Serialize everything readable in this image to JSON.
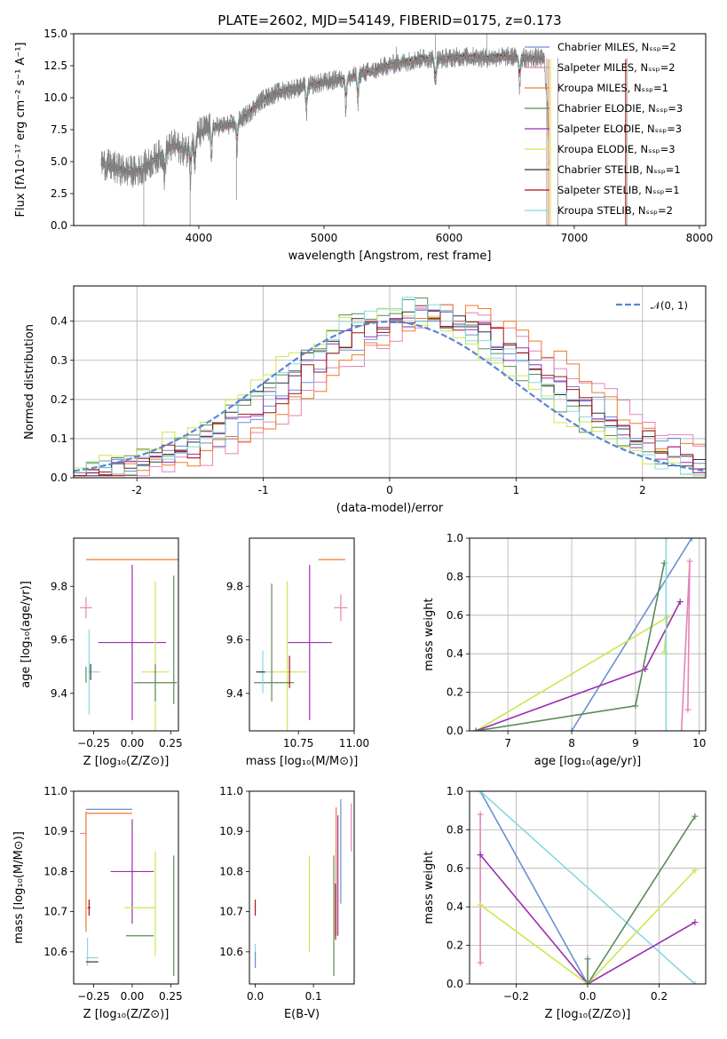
{
  "chart_data": [
    {
      "id": "spectrum",
      "type": "line",
      "title": "PLATE=2602, MJD=54149, FIBERID=0175, z=0.173",
      "xlabel": "wavelength [Angstrom, rest frame]",
      "ylabel": "Flux [fλ10⁻¹⁷ erg cm⁻² s⁻¹ A⁻¹]",
      "xlim": [
        3000,
        8050
      ],
      "ylim": [
        0,
        15
      ],
      "xticks": [
        4000,
        5000,
        6000,
        7000,
        8000
      ],
      "yticks": [
        0.0,
        2.5,
        5.0,
        7.5,
        10.0,
        12.5,
        15.0
      ],
      "legend_position": "right",
      "data_color": "#808080",
      "continuum": {
        "x": [
          3200,
          3300,
          3400,
          3500,
          3600,
          3700,
          3800,
          3900,
          4000,
          4100,
          4200,
          4300,
          4400,
          4500,
          4600,
          4700,
          4800,
          4900,
          5000,
          5100,
          5200,
          5300,
          5400,
          5500,
          5600,
          5700,
          5800,
          5900,
          6000,
          6100,
          6200,
          6300,
          6400,
          6500,
          6600,
          6700,
          6750
        ],
        "y": [
          5.0,
          4.6,
          4.3,
          4.2,
          4.8,
          5.6,
          6.3,
          5.8,
          7.2,
          7.7,
          7.8,
          8.0,
          8.8,
          9.8,
          10.3,
          10.6,
          10.8,
          11.0,
          11.2,
          11.4,
          11.5,
          11.9,
          12.1,
          12.5,
          12.7,
          12.9,
          13.1,
          13.0,
          13.1,
          13.2,
          13.2,
          13.1,
          13.2,
          13.2,
          13.1,
          13.1,
          13.0
        ]
      },
      "series": [
        {
          "name": "Chabrier MILES, N_SSP=2",
          "color": "#6a8fd4"
        },
        {
          "name": "Salpeter MILES, N_SSP=2",
          "color": "#e484b7"
        },
        {
          "name": "Kroupa MILES, N_SSP=1",
          "color": "#ee7a2c"
        },
        {
          "name": "Chabrier ELODIE, N_SSP=3",
          "color": "#5b8a5b"
        },
        {
          "name": "Salpeter ELODIE, N_SSP=3",
          "color": "#9b2fb0"
        },
        {
          "name": "Kroupa ELODIE, N_SSP=3",
          "color": "#cce651"
        },
        {
          "name": "Chabrier STELIB, N_SSP=1",
          "color": "#333333"
        },
        {
          "name": "Salpeter STELIB, N_SSP=1",
          "color": "#a31515"
        },
        {
          "name": "Kroupa STELIB, N_SSP=2",
          "color": "#88d8e0"
        }
      ]
    },
    {
      "id": "residuals",
      "type": "line",
      "xlabel": "(data-model)/error",
      "ylabel": "Normed distribution",
      "xlim": [
        -2.5,
        2.5
      ],
      "ylim": [
        0,
        0.49
      ],
      "xticks": [
        -2,
        -1,
        0,
        1,
        2
      ],
      "yticks": [
        0.0,
        0.1,
        0.2,
        0.3,
        0.4
      ],
      "grid": true,
      "legend_position": "top-right",
      "reference": {
        "name": "𝒩(0, 1)",
        "mu": 0,
        "sigma": 1,
        "color": "#5b84d4"
      },
      "series": [
        {
          "color": "#6a8fd4",
          "shift": 0.35,
          "width": 1.02
        },
        {
          "color": "#e484b7",
          "shift": 0.55,
          "width": 1.0
        },
        {
          "color": "#ee7a2c",
          "shift": 0.5,
          "width": 0.98
        },
        {
          "color": "#5b8a5b",
          "shift": 0.1,
          "width": 0.96
        },
        {
          "color": "#9b2fb0",
          "shift": 0.25,
          "width": 1.0
        },
        {
          "color": "#cce651",
          "shift": 0.0,
          "width": 1.0
        },
        {
          "color": "#333333",
          "shift": 0.2,
          "width": 1.0
        },
        {
          "color": "#a31515",
          "shift": 0.3,
          "width": 1.02
        },
        {
          "color": "#88d8e0",
          "shift": 0.15,
          "width": 0.97
        }
      ]
    },
    {
      "id": "z-age",
      "type": "scatter",
      "xlabel": "Z [log₁₀(Z/Z⊙)]",
      "ylabel": "age  [log₁₀(age/yr)]",
      "xlim": [
        -0.38,
        0.3
      ],
      "ylim": [
        9.26,
        9.98
      ],
      "xticks": [
        -0.25,
        0.0,
        0.25
      ],
      "xticklabels": [
        "−0.25",
        "0.00",
        "0.25"
      ],
      "yticks": [
        9.4,
        9.6,
        9.8
      ],
      "points": [
        {
          "x": 0.0,
          "y": 9.9,
          "xerr": 0.3,
          "yerr": 0.0,
          "color": "#ee7a2c"
        },
        {
          "x": -0.3,
          "y": 9.72,
          "xerr": 0.04,
          "yerr": 0.04,
          "color": "#e484b7"
        },
        {
          "x": 0.0,
          "y": 9.59,
          "xerr": 0.22,
          "yerr": 0.29,
          "color": "#9b2fb0"
        },
        {
          "x": 0.15,
          "y": 9.48,
          "xerr": 0.09,
          "yerr": 0.34,
          "color": "#cce651"
        },
        {
          "x": 0.15,
          "y": 9.44,
          "xerr": 0.14,
          "yerr": 0.07,
          "color": "#5b8a5b"
        },
        {
          "x": 0.27,
          "y": 9.6,
          "xerr": 0.0,
          "yerr": 0.24,
          "color": "#5b8a5b"
        },
        {
          "x": -0.28,
          "y": 9.48,
          "xerr": 0.0,
          "yerr": 0.16,
          "color": "#88d8e0"
        },
        {
          "x": -0.25,
          "y": 9.48,
          "xerr": 0.04,
          "yerr": 0.0,
          "color": "#88d8e0"
        },
        {
          "x": -0.3,
          "y": 9.47,
          "xerr": 0.0,
          "yerr": 0.03,
          "color": "#5b8a5b"
        },
        {
          "x": -0.27,
          "y": 9.48,
          "xerr": 0.0,
          "yerr": 0.03,
          "color": "#333333"
        }
      ]
    },
    {
      "id": "mass-age",
      "type": "scatter",
      "xlabel": "mass [log₁₀(M/M⊙)]",
      "xlim": [
        10.53,
        11.0
      ],
      "ylim": [
        9.26,
        9.98
      ],
      "xticks": [
        10.75,
        11.0
      ],
      "xticklabels": [
        "10.75",
        "11.00"
      ],
      "yticks": [
        9.4,
        9.6,
        9.8
      ],
      "points": [
        {
          "x": 10.9,
          "y": 9.9,
          "xerr": 0.06,
          "yerr": 0.0,
          "color": "#ee7a2c"
        },
        {
          "x": 10.95,
          "y": 9.9,
          "xerr": 0.0,
          "yerr": 0.0,
          "color": "#6a8fd4"
        },
        {
          "x": 10.94,
          "y": 9.72,
          "xerr": 0.03,
          "yerr": 0.05,
          "color": "#e484b7"
        },
        {
          "x": 10.8,
          "y": 9.59,
          "xerr": 0.1,
          "yerr": 0.29,
          "color": "#9b2fb0"
        },
        {
          "x": 10.7,
          "y": 9.48,
          "xerr": 0.09,
          "yerr": 0.34,
          "color": "#cce651"
        },
        {
          "x": 10.64,
          "y": 9.44,
          "xerr": 0.09,
          "yerr": 0.0,
          "color": "#5b8a5b"
        },
        {
          "x": 10.63,
          "y": 9.59,
          "xerr": 0.0,
          "yerr": 0.22,
          "color": "#5b8a5b"
        },
        {
          "x": 10.71,
          "y": 9.48,
          "xerr": 0.0,
          "yerr": 0.06,
          "color": "#a31515"
        },
        {
          "x": 10.59,
          "y": 9.48,
          "xerr": 0.02,
          "yerr": 0.08,
          "color": "#88d8e0"
        },
        {
          "x": 10.58,
          "y": 9.48,
          "xerr": 0.02,
          "yerr": 0.0,
          "color": "#333333"
        }
      ]
    },
    {
      "id": "age-weight",
      "type": "line",
      "xlabel": "age  [log₁₀(age/yr)]",
      "ylabel": "mass weight",
      "xlim": [
        6.4,
        10.1
      ],
      "ylim": [
        0,
        1.0
      ],
      "xticks": [
        7,
        8,
        9,
        10
      ],
      "yticks": [
        0.0,
        0.2,
        0.4,
        0.6,
        0.8,
        1.0
      ],
      "grid": true,
      "series": [
        {
          "color": "#6a8fd4",
          "x": [
            8.0,
            9.88
          ],
          "y": [
            0.0,
            1.0
          ]
        },
        {
          "color": "#e484b7",
          "x": [
            9.72,
            9.85,
            9.82
          ],
          "y": [
            0.0,
            0.88,
            0.11
          ]
        },
        {
          "color": "#cce651",
          "x": [
            6.5,
            9.5,
            9.45
          ],
          "y": [
            0.0,
            0.59,
            0.41
          ]
        },
        {
          "color": "#9b2fb0",
          "x": [
            6.5,
            9.15,
            9.7
          ],
          "y": [
            0.0,
            0.32,
            0.67
          ]
        },
        {
          "color": "#5b8a5b",
          "x": [
            6.5,
            9.0,
            9.45
          ],
          "y": [
            0.0,
            0.13,
            0.87
          ]
        },
        {
          "color": "#88d8e0",
          "x": [
            9.48,
            9.48
          ],
          "y": [
            0.0,
            1.0
          ]
        }
      ]
    },
    {
      "id": "z-mass",
      "type": "scatter",
      "xlabel": "Z [log₁₀(Z/Z⊙)]",
      "ylabel": "mass [log₁₀(M/M⊙)]",
      "xlim": [
        -0.38,
        0.3
      ],
      "ylim": [
        10.52,
        11.0
      ],
      "xticks": [
        -0.25,
        0.0,
        0.25
      ],
      "xticklabels": [
        "−0.25",
        "0.00",
        "0.25"
      ],
      "yticks": [
        10.6,
        10.7,
        10.8,
        10.9,
        11.0
      ],
      "points": [
        {
          "x": -0.15,
          "y": 10.955,
          "xerr": 0.15,
          "yerr": 0.0,
          "color": "#6a8fd4"
        },
        {
          "x": -0.15,
          "y": 10.945,
          "xerr": 0.15,
          "yerr": 0.0,
          "color": "#ee7a2c"
        },
        {
          "x": -0.32,
          "y": 10.895,
          "xerr": 0.02,
          "yerr": 0.0,
          "color": "#e484b7"
        },
        {
          "x": -0.3,
          "y": 10.8,
          "xerr": 0.0,
          "yerr": 0.15,
          "color": "#ee7a2c"
        },
        {
          "x": 0.0,
          "y": 10.8,
          "xerr": 0.14,
          "yerr": 0.13,
          "color": "#9b2fb0"
        },
        {
          "x": 0.05,
          "y": 10.71,
          "xerr": 0.1,
          "yerr": 0.0,
          "color": "#cce651"
        },
        {
          "x": 0.15,
          "y": 10.72,
          "xerr": 0.0,
          "yerr": 0.13,
          "color": "#cce651"
        },
        {
          "x": 0.27,
          "y": 10.69,
          "xerr": 0.0,
          "yerr": 0.15,
          "color": "#5b8a5b"
        },
        {
          "x": 0.05,
          "y": 10.64,
          "xerr": 0.09,
          "yerr": 0.0,
          "color": "#5b8a5b"
        },
        {
          "x": -0.28,
          "y": 10.71,
          "xerr": 0.01,
          "yerr": 0.02,
          "color": "#a31515"
        },
        {
          "x": -0.29,
          "y": 10.6,
          "xerr": 0.0,
          "yerr": 0.035,
          "color": "#88d8e0"
        },
        {
          "x": -0.26,
          "y": 10.585,
          "xerr": 0.04,
          "yerr": 0.0,
          "color": "#88d8e0"
        },
        {
          "x": -0.26,
          "y": 10.575,
          "xerr": 0.04,
          "yerr": 0.0,
          "color": "#333333"
        }
      ]
    },
    {
      "id": "ebv-mass",
      "type": "scatter",
      "xlabel": "E(B-V)",
      "xlim": [
        -0.01,
        0.17
      ],
      "ylim": [
        10.52,
        11.0
      ],
      "xticks": [
        0.0,
        0.1
      ],
      "xticklabels": [
        "0.0",
        "0.1"
      ],
      "yticks": [
        10.6,
        10.7,
        10.8,
        10.9,
        11.0
      ],
      "points": [
        {
          "x": 0.0,
          "y": 10.71,
          "xerr": 0.0,
          "yerr": 0.02,
          "color": "#a31515"
        },
        {
          "x": 0.0,
          "y": 10.59,
          "xerr": 0.0,
          "yerr": 0.03,
          "color": "#88d8e0"
        },
        {
          "x": 0.0,
          "y": 10.58,
          "xerr": 0.0,
          "yerr": 0.02,
          "color": "#6a8fd4"
        },
        {
          "x": 0.093,
          "y": 10.72,
          "xerr": 0.0,
          "yerr": 0.12,
          "color": "#cce651"
        },
        {
          "x": 0.135,
          "y": 10.69,
          "xerr": 0.0,
          "yerr": 0.15,
          "color": "#5b8a5b"
        },
        {
          "x": 0.139,
          "y": 10.8,
          "xerr": 0.0,
          "yerr": 0.16,
          "color": "#ee7a2c"
        },
        {
          "x": 0.142,
          "y": 10.79,
          "xerr": 0.0,
          "yerr": 0.15,
          "color": "#9b2fb0"
        },
        {
          "x": 0.147,
          "y": 10.85,
          "xerr": 0.0,
          "yerr": 0.13,
          "color": "#6a8fd4"
        },
        {
          "x": 0.165,
          "y": 10.91,
          "xerr": 0.0,
          "yerr": 0.06,
          "color": "#e484b7"
        },
        {
          "x": 0.138,
          "y": 10.7,
          "xerr": 0.0,
          "yerr": 0.07,
          "color": "#a31515"
        }
      ]
    },
    {
      "id": "z-weight",
      "type": "line",
      "xlabel": "Z [log₁₀(Z/Z⊙)]",
      "ylabel": "mass weight",
      "xlim": [
        -0.33,
        0.33
      ],
      "ylim": [
        0,
        1.0
      ],
      "xticks": [
        -0.2,
        0.0,
        0.2
      ],
      "xticklabels": [
        "−0.2",
        "0.0",
        "0.2"
      ],
      "yticks": [
        0.0,
        0.2,
        0.4,
        0.6,
        0.8,
        1.0
      ],
      "grid": true,
      "series": [
        {
          "color": "#6a8fd4",
          "x": [
            -0.3,
            0.0
          ],
          "y": [
            1.0,
            0.0
          ]
        },
        {
          "color": "#88d8e0",
          "x": [
            -0.3,
            0.3
          ],
          "y": [
            1.0,
            0.0
          ]
        },
        {
          "color": "#e484b7",
          "x": [
            -0.3,
            -0.3
          ],
          "y": [
            0.11,
            0.88
          ]
        },
        {
          "color": "#9b2fb0",
          "x": [
            -0.3,
            0.0,
            0.3
          ],
          "y": [
            0.67,
            0.0,
            0.32
          ]
        },
        {
          "color": "#cce651",
          "x": [
            -0.3,
            0.0,
            0.3
          ],
          "y": [
            0.41,
            0.0,
            0.59
          ]
        },
        {
          "color": "#5b8a5b",
          "x": [
            0.0,
            0.0,
            0.3
          ],
          "y": [
            0.13,
            0.0,
            0.87
          ]
        }
      ]
    }
  ]
}
